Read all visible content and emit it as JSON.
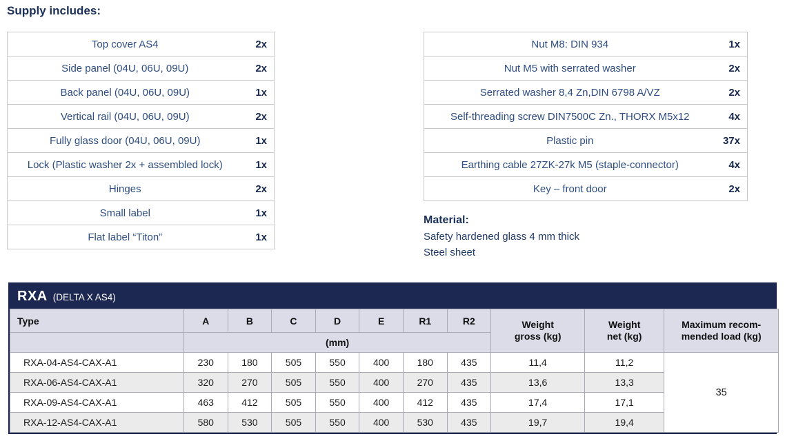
{
  "supply_heading": "Supply includes:",
  "colors": {
    "header_bar": "#1d2852",
    "heading_text": "#1b3158",
    "item_text": "#2e4d80",
    "qty_text": "#17294e",
    "spec_header_bg": "#dcdbe8",
    "row_stripe": "#ebebeb"
  },
  "supply_left": {
    "rows": [
      {
        "item": "Top cover AS4",
        "qty": "2x"
      },
      {
        "item": "Side panel (04U, 06U, 09U)",
        "qty": "2x"
      },
      {
        "item": "Back panel (04U, 06U, 09U)",
        "qty": "1x"
      },
      {
        "item": "Vertical rail (04U, 06U, 09U)",
        "qty": "2x"
      },
      {
        "item": "Fully glass door (04U, 06U, 09U)",
        "qty": "1x"
      },
      {
        "item": "Lock (Plastic washer 2x + assembled lock)",
        "qty": "1x"
      },
      {
        "item": "Hinges",
        "qty": "2x"
      },
      {
        "item": "Small label",
        "qty": "1x"
      },
      {
        "item": "Flat label “Titon”",
        "qty": "1x"
      }
    ]
  },
  "supply_right": {
    "rows": [
      {
        "item": "Nut M8: DIN 934",
        "qty": "1x"
      },
      {
        "item": "Nut M5 with serrated washer",
        "qty": "2x"
      },
      {
        "item": "Serrated washer 8,4 Zn,DIN 6798 A/VZ",
        "qty": "2x"
      },
      {
        "item": "Self-threading screw DIN7500C Zn., THORX M5x12",
        "qty": "4x"
      },
      {
        "item": "Plastic pin",
        "qty": "37x"
      },
      {
        "item": "Earthing cable 27ZK-27k M5 (staple-connector)",
        "qty": "4x"
      },
      {
        "item": "Key – front door",
        "qty": "2x"
      }
    ]
  },
  "material": {
    "heading": "Material:",
    "lines": [
      "Safety hardened glass 4 mm thick",
      "Steel sheet"
    ]
  },
  "spec": {
    "title": "RXA",
    "subtitle": "(DELTA X AS4)",
    "type_header": "Type",
    "dim_headers": [
      "A",
      "B",
      "C",
      "D",
      "E",
      "R1",
      "R2"
    ],
    "unit_label": "(mm)",
    "weight_gross_header": "Weight\ngross (kg)",
    "weight_net_header": "Weight\nnet (kg)",
    "max_load_header": "Maximum recom-\nmended load (kg)",
    "max_load_value": "35",
    "rows": [
      {
        "type": "RXA-04-AS4-CAX-A1",
        "values": [
          "230",
          "180",
          "505",
          "550",
          "400",
          "180",
          "435",
          "11,4",
          "11,2"
        ]
      },
      {
        "type": "RXA-06-AS4-CAX-A1",
        "values": [
          "320",
          "270",
          "505",
          "550",
          "400",
          "270",
          "435",
          "13,6",
          "13,3"
        ]
      },
      {
        "type": "RXA-09-AS4-CAX-A1",
        "values": [
          "463",
          "412",
          "505",
          "550",
          "400",
          "412",
          "435",
          "17,4",
          "17,1"
        ]
      },
      {
        "type": "RXA-12-AS4-CAX-A1",
        "values": [
          "580",
          "530",
          "505",
          "550",
          "400",
          "530",
          "435",
          "19,7",
          "19,4"
        ]
      }
    ]
  }
}
